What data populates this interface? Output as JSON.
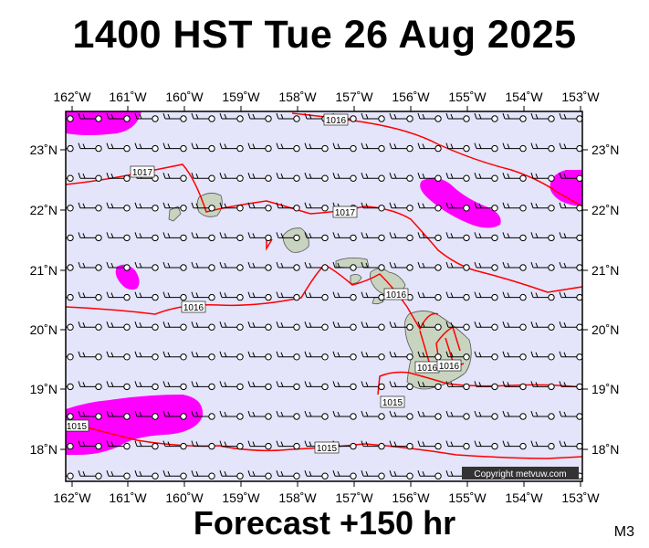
{
  "header": {
    "title": "1400 HST Tue 26 Aug 2025"
  },
  "footer": {
    "subtitle": "Forecast +150 hr",
    "code": "M3"
  },
  "map": {
    "copyright": "Copyright metvuw.com",
    "lon_labels": [
      "162˚W",
      "161˚W",
      "160˚W",
      "159˚W",
      "158˚W",
      "157˚W",
      "156˚W",
      "155˚W",
      "154˚W",
      "153˚W"
    ],
    "lat_labels": [
      "23˚N",
      "22˚N",
      "21˚N",
      "20˚N",
      "19˚N",
      "18˚N"
    ],
    "isobar_labels": [
      "1016",
      "1017",
      "1017",
      "1016",
      "1016",
      "1016",
      "1016",
      "1015",
      "1015",
      "1015"
    ],
    "colors": {
      "background": "#e4e4fa",
      "precip": "#ff00ff",
      "isobar": "#ff0000",
      "land": "#c8d4c0"
    }
  }
}
